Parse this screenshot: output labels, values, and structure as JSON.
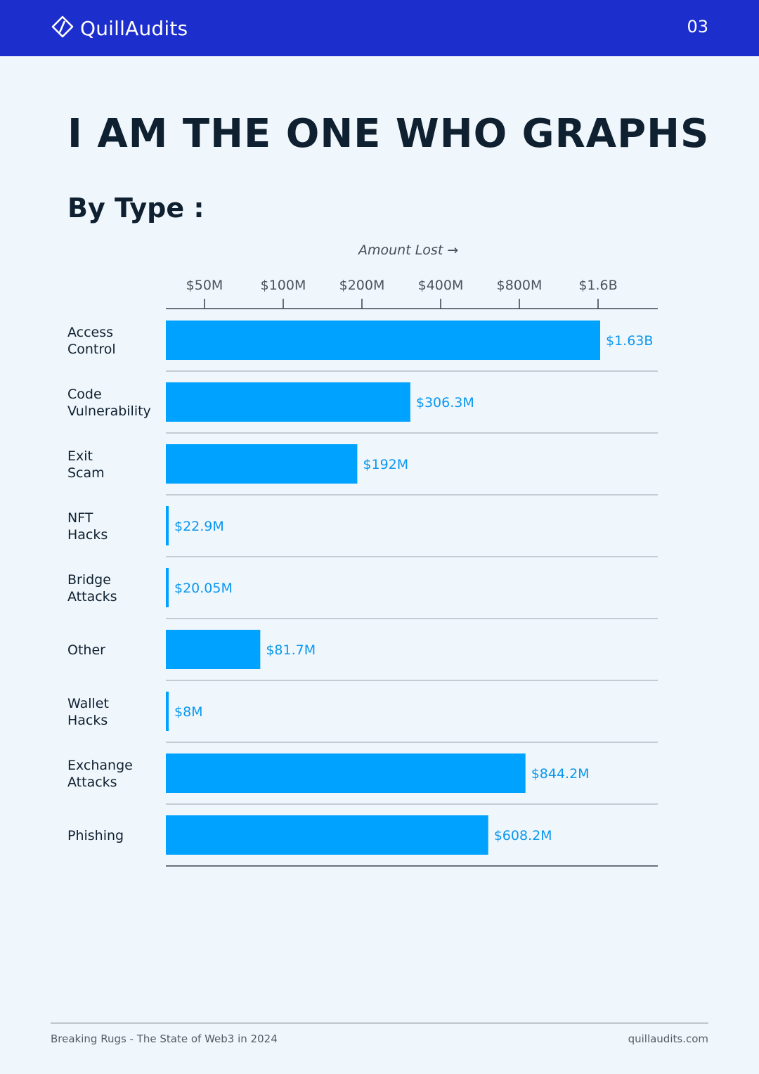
{
  "header": {
    "brand": "QuillAudits",
    "page_number": "03",
    "background": "#1c2ecc"
  },
  "title": "I AM THE ONE WHO GRAPHS",
  "subtitle": "By Type :",
  "chart_data": {
    "type": "bar",
    "orientation": "horizontal",
    "x_scale": "log2",
    "xlabel": "Amount Lost →",
    "x_ticks": [
      {
        "value": 50,
        "label": "$50M"
      },
      {
        "value": 100,
        "label": "$100M"
      },
      {
        "value": 200,
        "label": "$200M"
      },
      {
        "value": 400,
        "label": "$400M"
      },
      {
        "value": 800,
        "label": "$800M"
      },
      {
        "value": 1600,
        "label": "$1.6B"
      }
    ],
    "value_unit": "USD millions",
    "bar_color": "#00a2ff",
    "label_color": "#0a97ef",
    "bars": [
      {
        "category": [
          "Access",
          "Control"
        ],
        "value": 1630,
        "label": "$1.63B"
      },
      {
        "category": [
          "Code",
          "Vulnerability"
        ],
        "value": 306.3,
        "label": "$306.3M"
      },
      {
        "category": [
          "Exit",
          "Scam"
        ],
        "value": 192,
        "label": "$192M"
      },
      {
        "category": [
          "NFT",
          "Hacks"
        ],
        "value": 22.9,
        "label": "$22.9M"
      },
      {
        "category": [
          "Bridge",
          "Attacks"
        ],
        "value": 20.05,
        "label": "$20.05M"
      },
      {
        "category": [
          "Other"
        ],
        "value": 81.7,
        "label": "$81.7M"
      },
      {
        "category": [
          "Wallet",
          "Hacks"
        ],
        "value": 8,
        "label": "$8M"
      },
      {
        "category": [
          "Exchange",
          "Attacks"
        ],
        "value": 844.2,
        "label": "$844.2M"
      },
      {
        "category": [
          "Phishing"
        ],
        "value": 608.2,
        "label": "$608.2M"
      }
    ]
  },
  "footer": {
    "left": "Breaking Rugs - The State of Web3 in 2024",
    "right": "quillaudits.com"
  }
}
